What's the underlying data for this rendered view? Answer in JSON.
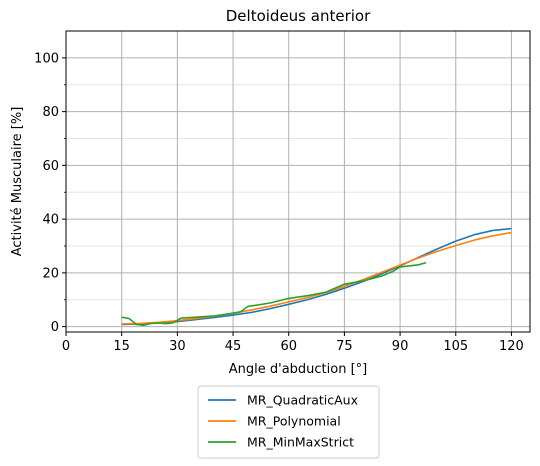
{
  "chart_data": {
    "type": "line",
    "title": "Deltoideus anterior",
    "xlabel": "Angle d'abduction [°]",
    "ylabel": "Activité Musculaire [%]",
    "xlim": [
      0,
      125
    ],
    "ylim": [
      -2,
      110
    ],
    "xticks": [
      0,
      15,
      30,
      45,
      60,
      75,
      90,
      105,
      120
    ],
    "yticks": [
      0,
      20,
      40,
      60,
      80,
      100
    ],
    "yminor": [
      10,
      30,
      50,
      70,
      90
    ],
    "grid": true,
    "legend_position": "below",
    "series": [
      {
        "name": "MR_QuadraticAux",
        "color": "#1f77b4",
        "x": [
          15,
          20,
          25,
          30,
          35,
          40,
          45,
          50,
          55,
          60,
          65,
          70,
          75,
          80,
          85,
          90,
          95,
          100,
          105,
          110,
          115,
          120
        ],
        "y": [
          0.8,
          1.0,
          1.4,
          1.9,
          2.6,
          3.4,
          4.3,
          5.3,
          6.7,
          8.3,
          10.0,
          12.0,
          14.3,
          16.8,
          19.6,
          22.6,
          25.8,
          28.9,
          31.8,
          34.2,
          35.8,
          36.5
        ]
      },
      {
        "name": "MR_Polynomial",
        "color": "#ff7f0e",
        "x": [
          15,
          20,
          25,
          30,
          35,
          40,
          45,
          50,
          55,
          60,
          65,
          70,
          75,
          80,
          85,
          90,
          95,
          100,
          105,
          110,
          115,
          120
        ],
        "y": [
          1.0,
          1.2,
          1.6,
          2.2,
          3.0,
          3.9,
          5.0,
          6.2,
          7.6,
          9.2,
          10.8,
          12.7,
          15.0,
          17.5,
          20.2,
          22.9,
          25.6,
          28.0,
          30.2,
          32.2,
          33.8,
          35.0
        ]
      },
      {
        "name": "MR_MinMaxStrict",
        "color": "#2ca02c",
        "x": [
          15,
          17,
          19,
          21,
          23,
          25,
          27,
          29,
          31,
          35,
          40,
          45,
          47,
          49,
          55,
          60,
          65,
          70,
          75,
          80,
          85,
          88,
          90,
          95,
          97
        ],
        "y": [
          3.5,
          3.0,
          0.8,
          0.5,
          1.2,
          1.3,
          1.1,
          1.5,
          3.2,
          3.5,
          4.0,
          5.0,
          5.5,
          7.5,
          8.8,
          10.5,
          11.5,
          12.8,
          15.8,
          17.0,
          18.8,
          20.5,
          22.2,
          23.0,
          23.8
        ]
      }
    ]
  }
}
